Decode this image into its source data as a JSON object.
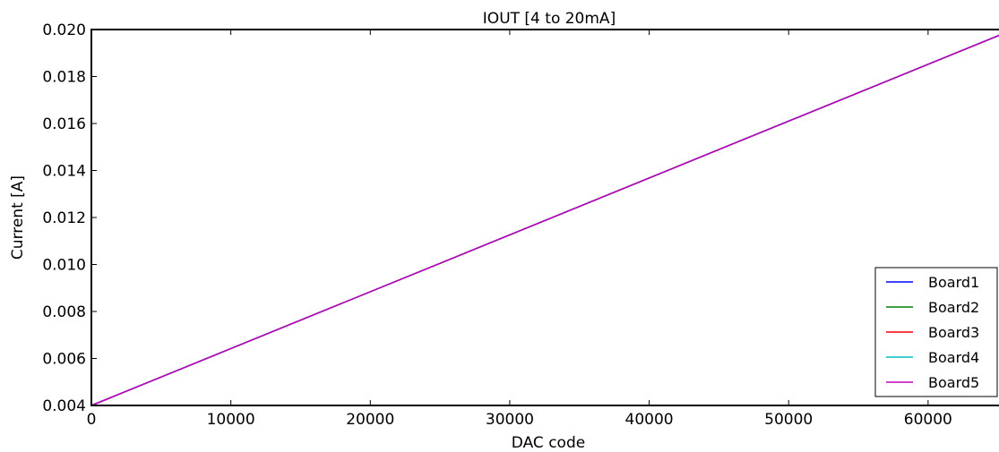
{
  "chart_data": {
    "type": "line",
    "title": "IOUT [4 to 20mA]",
    "xlabel": "DAC code",
    "ylabel": "Current [A]",
    "xlim": [
      0,
      65535
    ],
    "ylim": [
      0.004,
      0.02
    ],
    "xticks": [
      0,
      10000,
      20000,
      30000,
      40000,
      50000,
      60000
    ],
    "xtick_labels": [
      "0",
      "10000",
      "20000",
      "30000",
      "40000",
      "50000",
      "60000"
    ],
    "yticks": [
      0.004,
      0.006,
      0.008,
      0.01,
      0.012,
      0.014,
      0.016,
      0.018,
      0.02
    ],
    "ytick_labels": [
      "0.004",
      "0.006",
      "0.008",
      "0.010",
      "0.012",
      "0.014",
      "0.016",
      "0.018",
      "0.020"
    ],
    "grid": false,
    "legend_position": "lower-right",
    "series": [
      {
        "name": "Board1",
        "color": "#0000ff",
        "x": [
          0,
          65535
        ],
        "y": [
          0.004,
          0.01986
        ]
      },
      {
        "name": "Board2",
        "color": "#008000",
        "x": [
          0,
          65535
        ],
        "y": [
          0.004,
          0.01986
        ]
      },
      {
        "name": "Board3",
        "color": "#ff0000",
        "x": [
          0,
          65535
        ],
        "y": [
          0.004,
          0.01986
        ]
      },
      {
        "name": "Board4",
        "color": "#00bfbf",
        "x": [
          0,
          65535
        ],
        "y": [
          0.004,
          0.01986
        ]
      },
      {
        "name": "Board5",
        "color": "#bf00bf",
        "x": [
          0,
          65535
        ],
        "y": [
          0.004,
          0.01986
        ]
      }
    ]
  }
}
